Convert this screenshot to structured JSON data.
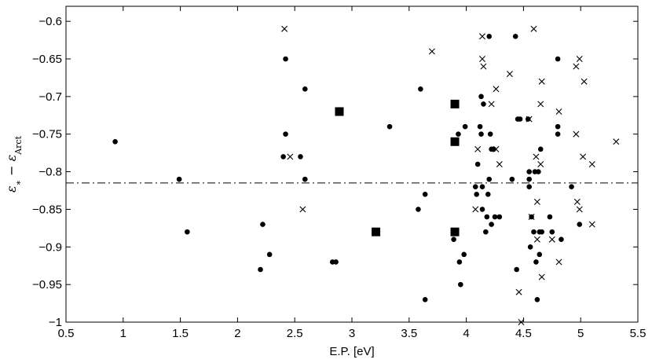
{
  "chart_data": {
    "type": "scatter",
    "xlabel": "E.P. [eV]",
    "ylabel": {
      "epsilon": "ε",
      "star": "∗",
      "minus": " − ",
      "arct_subscript": "Arct"
    },
    "xlim": [
      0.5,
      5.5
    ],
    "ylim": [
      -1.0,
      -0.58
    ],
    "xticks": [
      0.5,
      1,
      1.5,
      2,
      2.5,
      3,
      3.5,
      4,
      4.5,
      5,
      5.5
    ],
    "xtick_labels": [
      "0.5",
      "1",
      "1.5",
      "2",
      "2.5",
      "3",
      "3.5",
      "4",
      "4.5",
      "5",
      "5.5"
    ],
    "yticks": [
      -1.0,
      -0.95,
      -0.9,
      -0.85,
      -0.8,
      -0.75,
      -0.7,
      -0.65,
      -0.6
    ],
    "ytick_labels": [
      "−1",
      "−0.95",
      "−0.9",
      "−0.85",
      "−0.8",
      "−0.75",
      "−0.7",
      "−0.65",
      "−0.6"
    ],
    "grid": false,
    "reference_line": {
      "y": -0.815,
      "style": "dash-dot"
    },
    "series": [
      {
        "marker": "dot",
        "points": [
          [
            0.93,
            -0.76
          ],
          [
            1.49,
            -0.81
          ],
          [
            1.56,
            -0.88
          ],
          [
            2.2,
            -0.93
          ],
          [
            2.22,
            -0.87
          ],
          [
            2.28,
            -0.91
          ],
          [
            2.4,
            -0.78
          ],
          [
            2.42,
            -0.65
          ],
          [
            2.42,
            -0.75
          ],
          [
            2.55,
            -0.78
          ],
          [
            2.59,
            -0.69
          ],
          [
            2.59,
            -0.81
          ],
          [
            2.83,
            -0.92
          ],
          [
            2.86,
            -0.92
          ],
          [
            3.33,
            -0.74
          ],
          [
            3.58,
            -0.85
          ],
          [
            3.6,
            -0.69
          ],
          [
            3.64,
            -0.83
          ],
          [
            3.64,
            -0.97
          ],
          [
            3.89,
            -0.89
          ],
          [
            3.93,
            -0.75
          ],
          [
            3.94,
            -0.92
          ],
          [
            3.95,
            -0.95
          ],
          [
            3.98,
            -0.91
          ],
          [
            3.99,
            -0.74
          ],
          [
            4.08,
            -0.82
          ],
          [
            4.09,
            -0.83
          ],
          [
            4.1,
            -0.79
          ],
          [
            4.12,
            -0.74
          ],
          [
            4.13,
            -0.7
          ],
          [
            4.13,
            -0.75
          ],
          [
            4.14,
            -0.82
          ],
          [
            4.14,
            -0.85
          ],
          [
            4.15,
            -0.71
          ],
          [
            4.17,
            -0.88
          ],
          [
            4.18,
            -0.86
          ],
          [
            4.19,
            -0.83
          ],
          [
            4.2,
            -0.62
          ],
          [
            4.2,
            -0.81
          ],
          [
            4.21,
            -0.75
          ],
          [
            4.22,
            -0.77
          ],
          [
            4.22,
            -0.87
          ],
          [
            4.24,
            -0.77
          ],
          [
            4.25,
            -0.86
          ],
          [
            4.29,
            -0.86
          ],
          [
            4.4,
            -0.81
          ],
          [
            4.43,
            -0.62
          ],
          [
            4.44,
            -0.93
          ],
          [
            4.45,
            -0.73
          ],
          [
            4.47,
            -0.73
          ],
          [
            4.54,
            -0.73
          ],
          [
            4.55,
            -0.8
          ],
          [
            4.55,
            -0.81
          ],
          [
            4.55,
            -0.82
          ],
          [
            4.56,
            -0.9
          ],
          [
            4.57,
            -0.86
          ],
          [
            4.59,
            -0.88
          ],
          [
            4.6,
            -0.8
          ],
          [
            4.61,
            -0.92
          ],
          [
            4.62,
            -0.97
          ],
          [
            4.63,
            -0.8
          ],
          [
            4.64,
            -0.88
          ],
          [
            4.64,
            -0.91
          ],
          [
            4.65,
            -0.77
          ],
          [
            4.66,
            -0.88
          ],
          [
            4.73,
            -0.86
          ],
          [
            4.75,
            -0.88
          ],
          [
            4.8,
            -0.65
          ],
          [
            4.8,
            -0.74
          ],
          [
            4.8,
            -0.75
          ],
          [
            4.83,
            -0.89
          ],
          [
            4.92,
            -0.82
          ],
          [
            4.99,
            -0.87
          ]
        ]
      },
      {
        "marker": "x",
        "points": [
          [
            2.41,
            -0.61
          ],
          [
            2.46,
            -0.78
          ],
          [
            2.57,
            -0.85
          ],
          [
            3.7,
            -0.64
          ],
          [
            4.08,
            -0.85
          ],
          [
            4.1,
            -0.77
          ],
          [
            4.14,
            -0.62
          ],
          [
            4.14,
            -0.65
          ],
          [
            4.15,
            -0.66
          ],
          [
            4.22,
            -0.71
          ],
          [
            4.26,
            -0.69
          ],
          [
            4.26,
            -0.77
          ],
          [
            4.29,
            -0.79
          ],
          [
            4.38,
            -0.67
          ],
          [
            4.46,
            -0.96
          ],
          [
            4.48,
            -1.0
          ],
          [
            4.55,
            -0.73
          ],
          [
            4.57,
            -0.86
          ],
          [
            4.59,
            -0.61
          ],
          [
            4.61,
            -0.78
          ],
          [
            4.62,
            -0.84
          ],
          [
            4.62,
            -0.89
          ],
          [
            4.65,
            -0.71
          ],
          [
            4.65,
            -0.79
          ],
          [
            4.66,
            -0.68
          ],
          [
            4.66,
            -0.94
          ],
          [
            4.75,
            -0.89
          ],
          [
            4.81,
            -0.72
          ],
          [
            4.81,
            -0.92
          ],
          [
            4.96,
            -0.66
          ],
          [
            4.96,
            -0.75
          ],
          [
            4.97,
            -0.84
          ],
          [
            4.99,
            -0.65
          ],
          [
            4.99,
            -0.85
          ],
          [
            5.02,
            -0.78
          ],
          [
            5.03,
            -0.68
          ],
          [
            5.1,
            -0.79
          ],
          [
            5.1,
            -0.87
          ],
          [
            5.31,
            -0.76
          ]
        ]
      },
      {
        "marker": "square",
        "points": [
          [
            2.89,
            -0.72
          ],
          [
            3.21,
            -0.88
          ],
          [
            3.9,
            -0.71
          ],
          [
            3.9,
            -0.76
          ],
          [
            3.9,
            -0.88
          ]
        ]
      }
    ]
  }
}
